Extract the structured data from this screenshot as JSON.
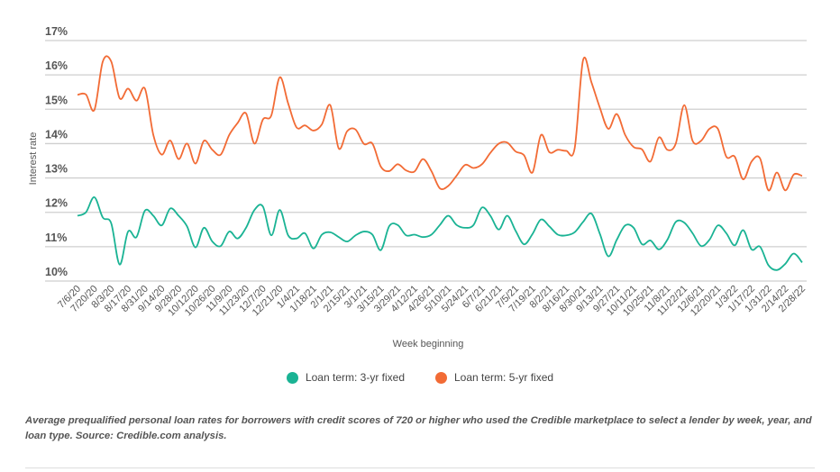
{
  "chart_data": {
    "type": "line",
    "title": "",
    "xlabel": "Week beginning",
    "ylabel": "Interest rate",
    "ylim": [
      10,
      17
    ],
    "yticks": [
      "10%",
      "11%",
      "12%",
      "13%",
      "14%",
      "15%",
      "16%",
      "17%"
    ],
    "grid": true,
    "legend_placement": "bottom",
    "x": [
      "7/6/20",
      "7/13/20",
      "7/20/20",
      "7/27/20",
      "8/3/20",
      "8/10/20",
      "8/17/20",
      "8/24/20",
      "8/31/20",
      "9/7/20",
      "9/14/20",
      "9/21/20",
      "9/28/20",
      "10/5/20",
      "10/12/20",
      "10/19/20",
      "10/26/20",
      "11/2/20",
      "11/9/20",
      "11/16/20",
      "11/23/20",
      "11/30/20",
      "12/7/20",
      "12/14/20",
      "12/21/20",
      "12/28/20",
      "1/4/21",
      "1/11/21",
      "1/18/21",
      "1/25/21",
      "2/1/21",
      "2/8/21",
      "2/15/21",
      "2/22/21",
      "3/1/21",
      "3/8/21",
      "3/15/21",
      "3/22/21",
      "3/29/21",
      "4/5/21",
      "4/12/21",
      "4/19/21",
      "4/26/21",
      "5/3/21",
      "5/10/21",
      "5/17/21",
      "5/24/21",
      "5/31/21",
      "6/7/21",
      "6/14/21",
      "6/21/21",
      "6/28/21",
      "7/5/21",
      "7/12/21",
      "7/19/21",
      "7/26/21",
      "8/2/21",
      "8/9/21",
      "8/16/21",
      "8/23/21",
      "8/30/21",
      "9/6/21",
      "9/13/21",
      "9/20/21",
      "9/27/21",
      "10/4/21",
      "10/11/21",
      "10/18/21",
      "10/25/21",
      "11/1/21",
      "11/8/21",
      "11/15/21",
      "11/22/21",
      "11/29/21",
      "12/6/21",
      "12/13/21",
      "12/20/21",
      "12/27/21",
      "1/3/22",
      "1/10/22",
      "1/17/22",
      "1/24/22",
      "1/31/22",
      "2/7/22",
      "2/14/22",
      "2/21/22",
      "2/28/22"
    ],
    "series": [
      {
        "name": "Loan term: 3-yr fixed",
        "color": "#1ab394",
        "values": [
          11.9,
          12.0,
          12.44,
          11.85,
          11.68,
          10.48,
          11.44,
          11.28,
          12.05,
          11.9,
          11.62,
          12.11,
          11.9,
          11.59,
          10.98,
          11.55,
          11.15,
          11.02,
          11.44,
          11.24,
          11.55,
          12.07,
          12.17,
          11.33,
          12.07,
          11.33,
          11.24,
          11.39,
          10.95,
          11.35,
          11.42,
          11.28,
          11.15,
          11.33,
          11.44,
          11.35,
          10.9,
          11.6,
          11.63,
          11.33,
          11.35,
          11.28,
          11.35,
          11.63,
          11.9,
          11.63,
          11.55,
          11.63,
          12.14,
          11.9,
          11.5,
          11.9,
          11.46,
          11.07,
          11.37,
          11.79,
          11.59,
          11.35,
          11.33,
          11.42,
          11.72,
          11.96,
          11.37,
          10.72,
          11.2,
          11.62,
          11.55,
          11.07,
          11.18,
          10.92,
          11.2,
          11.72,
          11.7,
          11.39,
          11.02,
          11.2,
          11.62,
          11.39,
          11.04,
          11.48,
          10.92,
          11.0,
          10.46,
          10.32,
          10.5,
          10.8,
          10.54
        ]
      },
      {
        "name": "Loan term: 5-yr fixed",
        "color": "#f26b35",
        "values": [
          15.42,
          15.43,
          14.98,
          16.39,
          16.39,
          15.32,
          15.6,
          15.25,
          15.6,
          14.25,
          13.68,
          14.09,
          13.55,
          14.0,
          13.42,
          14.08,
          13.82,
          13.68,
          14.25,
          14.6,
          14.88,
          14.0,
          14.7,
          14.82,
          15.93,
          15.17,
          14.47,
          14.53,
          14.38,
          14.56,
          15.12,
          13.86,
          14.36,
          14.41,
          13.99,
          14.0,
          13.33,
          13.2,
          13.4,
          13.22,
          13.19,
          13.55,
          13.2,
          12.7,
          12.77,
          13.07,
          13.38,
          13.29,
          13.4,
          13.73,
          14.0,
          14.03,
          13.77,
          13.66,
          13.16,
          14.25,
          13.75,
          13.82,
          13.79,
          13.86,
          16.43,
          15.78,
          15.04,
          14.43,
          14.86,
          14.25,
          13.9,
          13.83,
          13.48,
          14.18,
          13.82,
          14.0,
          15.12,
          14.08,
          14.08,
          14.43,
          14.43,
          13.62,
          13.62,
          12.96,
          13.48,
          13.57,
          12.64,
          13.16,
          12.64,
          13.1,
          13.06
        ]
      }
    ]
  },
  "caption": "Average prequalified personal loan rates for borrowers with credit scores of 720 or higher who used the Credible marketplace to select a lender by week, year, and loan type. Source: Credible.com analysis."
}
